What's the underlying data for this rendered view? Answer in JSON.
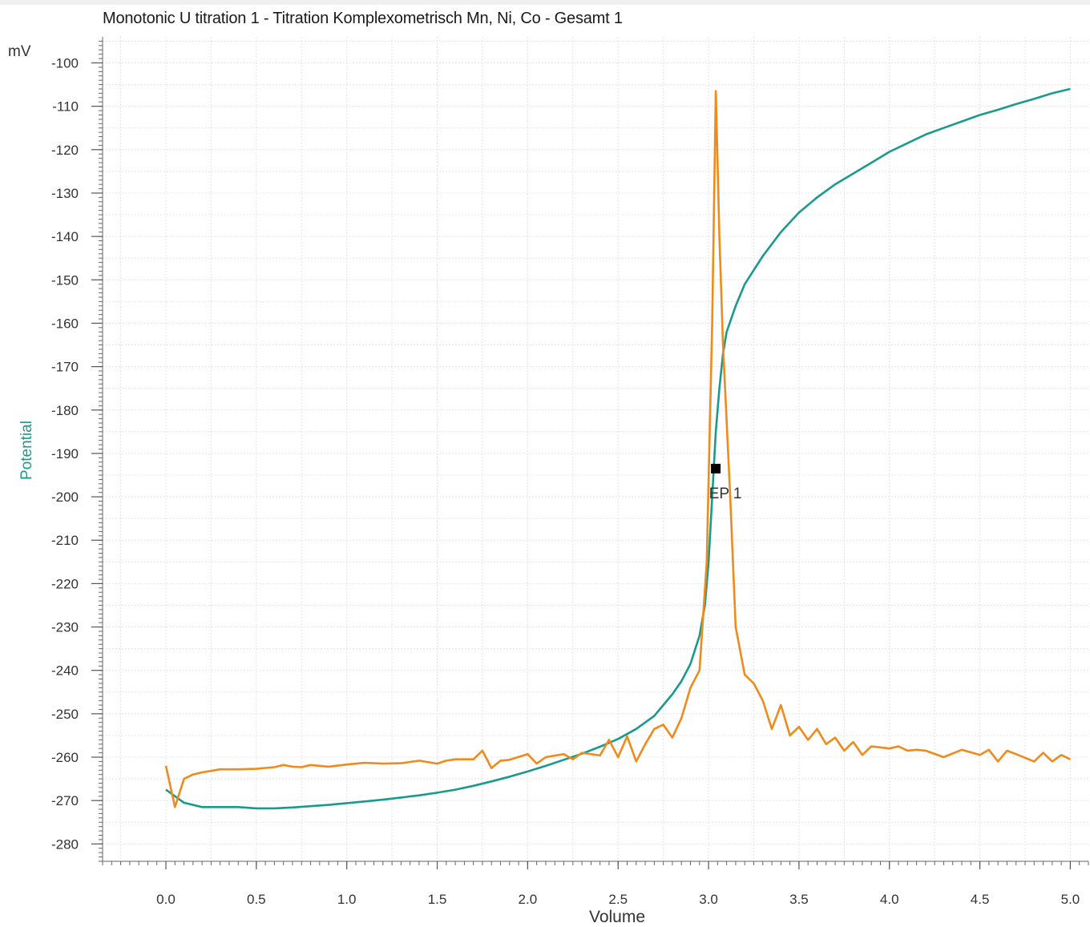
{
  "chart_data": {
    "type": "line",
    "title": "Monotonic U titration 1 - Titration Komplexometrisch Mn, Ni, Co - Gesamt  1",
    "y_unit": "mV",
    "ylabel": "Potential",
    "xlabel": "Volume",
    "xlim": [
      -0.35,
      5.1
    ],
    "ylim": [
      -284,
      -94
    ],
    "x_ticks": [
      0.0,
      0.5,
      1.0,
      1.5,
      2.0,
      2.5,
      3.0,
      3.5,
      4.0,
      4.5,
      5.0
    ],
    "x_tick_labels": [
      "0.0",
      "0.5",
      "1.0",
      "1.5",
      "2.0",
      "2.5",
      "3.0",
      "3.5",
      "4.0",
      "4.5",
      "5.0"
    ],
    "y_ticks": [
      -100,
      -110,
      -120,
      -130,
      -140,
      -150,
      -160,
      -170,
      -180,
      -190,
      -200,
      -210,
      -220,
      -230,
      -240,
      -250,
      -260,
      -270,
      -280
    ],
    "y_tick_labels": [
      "-100",
      "-110",
      "-120",
      "-130",
      "-140",
      "-150",
      "-160",
      "-170",
      "-180",
      "-190",
      "-200",
      "-210",
      "-220",
      "-230",
      "-240",
      "-250",
      "-260",
      "-270",
      "-280"
    ],
    "grid": true,
    "series": [
      {
        "color": "#1a9a8c",
        "points": [
          [
            0.0,
            -267.5
          ],
          [
            0.1,
            -270.5
          ],
          [
            0.2,
            -271.5
          ],
          [
            0.3,
            -271.5
          ],
          [
            0.4,
            -271.5
          ],
          [
            0.5,
            -271.8
          ],
          [
            0.6,
            -271.8
          ],
          [
            0.7,
            -271.6
          ],
          [
            0.8,
            -271.3
          ],
          [
            0.9,
            -271.0
          ],
          [
            1.0,
            -270.6
          ],
          [
            1.1,
            -270.2
          ],
          [
            1.2,
            -269.8
          ],
          [
            1.3,
            -269.3
          ],
          [
            1.4,
            -268.8
          ],
          [
            1.5,
            -268.2
          ],
          [
            1.6,
            -267.5
          ],
          [
            1.7,
            -266.6
          ],
          [
            1.8,
            -265.6
          ],
          [
            1.9,
            -264.5
          ],
          [
            2.0,
            -263.3
          ],
          [
            2.1,
            -262.0
          ],
          [
            2.2,
            -260.6
          ],
          [
            2.3,
            -259.2
          ],
          [
            2.4,
            -257.6
          ],
          [
            2.5,
            -255.8
          ],
          [
            2.6,
            -253.5
          ],
          [
            2.7,
            -250.5
          ],
          [
            2.75,
            -248.0
          ],
          [
            2.8,
            -245.5
          ],
          [
            2.85,
            -242.5
          ],
          [
            2.9,
            -238.5
          ],
          [
            2.95,
            -232.0
          ],
          [
            2.98,
            -225.0
          ],
          [
            3.0,
            -215.0
          ],
          [
            3.02,
            -200.0
          ],
          [
            3.04,
            -185.0
          ],
          [
            3.06,
            -175.0
          ],
          [
            3.08,
            -167.0
          ],
          [
            3.1,
            -162.0
          ],
          [
            3.15,
            -156.0
          ],
          [
            3.2,
            -151.0
          ],
          [
            3.3,
            -144.5
          ],
          [
            3.4,
            -139.0
          ],
          [
            3.5,
            -134.5
          ],
          [
            3.6,
            -131.0
          ],
          [
            3.7,
            -128.0
          ],
          [
            3.8,
            -125.5
          ],
          [
            3.9,
            -123.0
          ],
          [
            4.0,
            -120.5
          ],
          [
            4.1,
            -118.5
          ],
          [
            4.2,
            -116.5
          ],
          [
            4.3,
            -115.0
          ],
          [
            4.4,
            -113.5
          ],
          [
            4.5,
            -112.0
          ],
          [
            4.6,
            -110.8
          ],
          [
            4.7,
            -109.5
          ],
          [
            4.8,
            -108.3
          ],
          [
            4.9,
            -107.0
          ],
          [
            5.0,
            -106.0
          ]
        ]
      },
      {
        "color": "#ef8a1b",
        "points": [
          [
            0.0,
            -262.0
          ],
          [
            0.05,
            -271.5
          ],
          [
            0.1,
            -265.0
          ],
          [
            0.15,
            -264.0
          ],
          [
            0.2,
            -263.5
          ],
          [
            0.3,
            -262.8
          ],
          [
            0.4,
            -262.8
          ],
          [
            0.5,
            -262.7
          ],
          [
            0.6,
            -262.3
          ],
          [
            0.65,
            -261.8
          ],
          [
            0.7,
            -262.2
          ],
          [
            0.75,
            -262.3
          ],
          [
            0.8,
            -261.8
          ],
          [
            0.9,
            -262.2
          ],
          [
            1.0,
            -261.7
          ],
          [
            1.1,
            -261.3
          ],
          [
            1.2,
            -261.5
          ],
          [
            1.3,
            -261.4
          ],
          [
            1.4,
            -260.8
          ],
          [
            1.5,
            -261.5
          ],
          [
            1.55,
            -260.8
          ],
          [
            1.6,
            -260.5
          ],
          [
            1.7,
            -260.5
          ],
          [
            1.75,
            -258.5
          ],
          [
            1.8,
            -262.5
          ],
          [
            1.85,
            -260.8
          ],
          [
            1.9,
            -260.6
          ],
          [
            2.0,
            -259.3
          ],
          [
            2.05,
            -261.5
          ],
          [
            2.1,
            -260.0
          ],
          [
            2.2,
            -259.3
          ],
          [
            2.25,
            -260.5
          ],
          [
            2.3,
            -259.0
          ],
          [
            2.4,
            -259.6
          ],
          [
            2.45,
            -256.0
          ],
          [
            2.5,
            -260.0
          ],
          [
            2.55,
            -255.2
          ],
          [
            2.6,
            -261.0
          ],
          [
            2.65,
            -257.0
          ],
          [
            2.7,
            -253.5
          ],
          [
            2.75,
            -252.5
          ],
          [
            2.8,
            -255.5
          ],
          [
            2.85,
            -251.0
          ],
          [
            2.9,
            -244.0
          ],
          [
            2.95,
            -240.0
          ],
          [
            2.99,
            -215.0
          ],
          [
            3.02,
            -160.0
          ],
          [
            3.04,
            -106.5
          ],
          [
            3.06,
            -140.0
          ],
          [
            3.08,
            -165.0
          ],
          [
            3.12,
            -200.0
          ],
          [
            3.15,
            -230.0
          ],
          [
            3.2,
            -241.0
          ],
          [
            3.25,
            -243.0
          ],
          [
            3.3,
            -247.0
          ],
          [
            3.35,
            -253.5
          ],
          [
            3.4,
            -248.0
          ],
          [
            3.45,
            -255.0
          ],
          [
            3.5,
            -253.0
          ],
          [
            3.55,
            -256.0
          ],
          [
            3.6,
            -253.5
          ],
          [
            3.65,
            -257.0
          ],
          [
            3.7,
            -255.5
          ],
          [
            3.75,
            -258.5
          ],
          [
            3.8,
            -256.5
          ],
          [
            3.85,
            -259.5
          ],
          [
            3.9,
            -257.5
          ],
          [
            4.0,
            -258.0
          ],
          [
            4.05,
            -257.5
          ],
          [
            4.1,
            -258.5
          ],
          [
            4.15,
            -258.3
          ],
          [
            4.2,
            -258.5
          ],
          [
            4.3,
            -260.0
          ],
          [
            4.4,
            -258.3
          ],
          [
            4.5,
            -259.5
          ],
          [
            4.55,
            -258.3
          ],
          [
            4.6,
            -261.0
          ],
          [
            4.65,
            -258.5
          ],
          [
            4.7,
            -259.3
          ],
          [
            4.8,
            -261.0
          ],
          [
            4.85,
            -259.0
          ],
          [
            4.9,
            -261.0
          ],
          [
            4.95,
            -259.5
          ],
          [
            5.0,
            -260.5
          ]
        ]
      }
    ],
    "markers": [
      {
        "label": "EP 1",
        "x": 3.04,
        "y": -193.5
      }
    ]
  }
}
